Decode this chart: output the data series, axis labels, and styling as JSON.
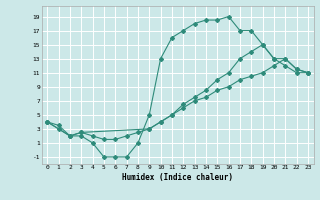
{
  "xlabel": "Humidex (Indice chaleur)",
  "bg_color": "#cce8e8",
  "grid_color": "#ffffff",
  "line_color": "#2e8b7a",
  "xlim": [
    -0.5,
    23.5
  ],
  "ylim": [
    -2,
    20.5
  ],
  "xticks": [
    0,
    1,
    2,
    3,
    4,
    5,
    6,
    7,
    8,
    9,
    10,
    11,
    12,
    13,
    14,
    15,
    16,
    17,
    18,
    19,
    20,
    21,
    22,
    23
  ],
  "yticks": [
    -1,
    1,
    3,
    5,
    7,
    9,
    11,
    13,
    15,
    17,
    19
  ],
  "line1_x": [
    0,
    1,
    2,
    3,
    4,
    5,
    6,
    7,
    8,
    9,
    10,
    11,
    12,
    13,
    14,
    15,
    16,
    17,
    18,
    19,
    20,
    21,
    22,
    23
  ],
  "line1_y": [
    4,
    3,
    2,
    2,
    1,
    -1,
    -1,
    -1,
    1,
    5,
    13,
    16,
    17,
    18,
    18.5,
    18.5,
    19,
    17,
    17,
    15,
    13,
    12,
    11,
    11
  ],
  "line2_x": [
    0,
    1,
    2,
    3,
    4,
    5,
    6,
    7,
    8,
    9,
    10,
    11,
    12,
    13,
    14,
    15,
    16,
    17,
    18,
    19,
    20,
    21,
    22,
    23
  ],
  "line2_y": [
    4,
    3.5,
    2,
    2.5,
    2,
    1.5,
    1.5,
    2,
    2.5,
    3,
    4,
    5,
    6,
    7,
    7.5,
    8.5,
    9,
    10,
    10.5,
    11,
    12,
    13,
    11.5,
    11
  ],
  "line3_x": [
    0,
    2,
    3,
    9,
    10,
    11,
    12,
    13,
    14,
    15,
    16,
    17,
    18,
    19,
    20,
    21,
    22,
    23
  ],
  "line3_y": [
    4,
    2,
    2.5,
    3,
    4,
    5,
    6.5,
    7.5,
    8.5,
    10,
    11,
    13,
    14,
    15,
    13,
    13,
    11.5,
    11
  ]
}
